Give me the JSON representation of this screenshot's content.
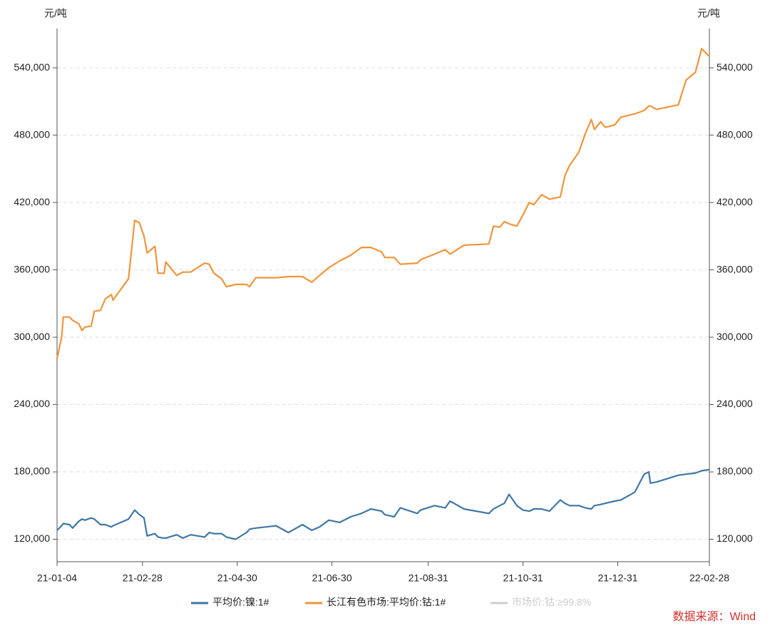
{
  "chart_data": {
    "type": "line",
    "y_label": "元/吨",
    "y2_label": "元/吨",
    "source": "数据来源：Wind",
    "x": [
      "21-01-04",
      "21-01-07",
      "21-01-08",
      "21-01-12",
      "21-01-14",
      "21-01-18",
      "21-01-20",
      "21-01-22",
      "21-01-26",
      "21-01-28",
      "21-02-01",
      "21-02-04",
      "21-02-08",
      "21-02-09",
      "21-02-19",
      "21-02-23",
      "21-02-26",
      "21-03-01",
      "21-03-03",
      "21-03-08",
      "21-03-10",
      "21-03-14",
      "21-03-15",
      "21-03-22",
      "21-03-26",
      "21-03-31",
      "21-04-09",
      "21-04-12",
      "21-04-15",
      "21-04-20",
      "21-04-23",
      "21-04-29",
      "21-05-06",
      "21-05-08",
      "21-05-12",
      "21-05-25",
      "21-06-02",
      "21-06-11",
      "21-06-17",
      "21-06-22",
      "21-06-28",
      "21-07-05",
      "21-07-12",
      "21-07-19",
      "21-07-25",
      "21-08-01",
      "21-08-03",
      "21-08-09",
      "21-08-13",
      "21-08-24",
      "21-08-26",
      "21-09-04",
      "21-09-11",
      "21-09-14",
      "21-09-23",
      "21-10-09",
      "21-10-12",
      "21-10-16",
      "21-10-19",
      "21-10-22",
      "21-10-27",
      "21-10-31",
      "21-11-04",
      "21-11-07",
      "21-11-12",
      "21-11-17",
      "21-11-24",
      "21-11-27",
      "21-11-30",
      "21-12-06",
      "21-12-10",
      "21-12-14",
      "21-12-16",
      "21-12-20",
      "21-12-23",
      "21-12-29",
      "22-01-02",
      "22-01-11",
      "22-01-17",
      "22-01-20",
      "22-01-21",
      "22-01-25",
      "22-02-08",
      "22-02-13",
      "22-02-19",
      "22-02-23",
      "22-02-28"
    ],
    "series": [
      {
        "name": "平均价:镍:1#",
        "color": "#3f77a6",
        "axis": "y",
        "values": [
          128000,
          132000,
          134000,
          133000,
          130000,
          136000,
          138000,
          137000,
          139000,
          138000,
          133000,
          133000,
          131000,
          132000,
          138000,
          146000,
          142000,
          139000,
          123000,
          125000,
          122000,
          121000,
          121000,
          124000,
          121000,
          124000,
          122000,
          126000,
          125000,
          125000,
          122000,
          120000,
          126000,
          129000,
          130000,
          132000,
          126000,
          133000,
          128000,
          131000,
          137000,
          135000,
          140000,
          143000,
          147000,
          145000,
          142000,
          140000,
          148000,
          143000,
          146000,
          150000,
          148000,
          154000,
          147000,
          143000,
          147000,
          150000,
          152000,
          160000,
          150000,
          146000,
          145000,
          147000,
          147000,
          145000,
          155000,
          152000,
          150000,
          150000,
          148000,
          147000,
          150000,
          151000,
          152000,
          154000,
          155000,
          162000,
          178000,
          180000,
          170000,
          171000,
          177000,
          178000,
          179000,
          181000,
          182000
        ]
      },
      {
        "name": "长江有色市场:平均价:钴:1#",
        "color": "#f0953b",
        "axis": "y2",
        "values": [
          281000,
          300000,
          318000,
          318000,
          315000,
          312000,
          306000,
          309000,
          310000,
          323000,
          324000,
          334000,
          338000,
          333000,
          352000,
          404000,
          402000,
          390000,
          375000,
          381000,
          357000,
          357000,
          367000,
          355000,
          358000,
          358000,
          366000,
          365000,
          357000,
          352000,
          345000,
          347000,
          347000,
          345000,
          353000,
          353000,
          354000,
          354000,
          349000,
          355000,
          362000,
          368000,
          373000,
          380000,
          380000,
          376000,
          371000,
          371000,
          365000,
          366000,
          369000,
          374000,
          378000,
          374000,
          382000,
          383000,
          399000,
          398000,
          403000,
          401000,
          399000,
          409000,
          420000,
          418000,
          427000,
          423000,
          425000,
          444000,
          453000,
          465000,
          481000,
          494000,
          485000,
          492000,
          487000,
          489000,
          496000,
          499000,
          502000,
          506000,
          506000,
          503000,
          507000,
          529000,
          536000,
          557000,
          550000
        ]
      },
      {
        "name": "市场价:钴:≥99.8%",
        "color": "#cccccc",
        "axis": "y",
        "hidden": true,
        "values": [
          null,
          null,
          null,
          null,
          null,
          null,
          null,
          null,
          null,
          null,
          null,
          null,
          null,
          null,
          null,
          null,
          null,
          null,
          null,
          null,
          null,
          null,
          null,
          null,
          null,
          null,
          null,
          null,
          null,
          null,
          null,
          null,
          null,
          null,
          null,
          null,
          null,
          null,
          null,
          null,
          null,
          null,
          null,
          null,
          null,
          null,
          null,
          null,
          null,
          null,
          null,
          null,
          null,
          null,
          null,
          null,
          null,
          null,
          null,
          null,
          null,
          null,
          null,
          null,
          null,
          null,
          null,
          null,
          null,
          null,
          null,
          null,
          null,
          null,
          null,
          null,
          null,
          null,
          null,
          null,
          null,
          null,
          null,
          null,
          null,
          null,
          null
        ]
      }
    ],
    "xlim": [
      "21-01-04",
      "22-02-28"
    ],
    "xticks": [
      "21-01-04",
      "21-02-28",
      "21-04-30",
      "21-06-30",
      "21-08-31",
      "21-10-31",
      "21-12-31",
      "22-02-28"
    ],
    "ylim": [
      100000,
      575000
    ],
    "yticks": [
      {
        "value": 120000,
        "label": "120,000"
      },
      {
        "value": 180000,
        "label": "180,000"
      },
      {
        "value": 240000,
        "label": "240,000"
      },
      {
        "value": 300000,
        "label": "300,000"
      },
      {
        "value": 360000,
        "label": "360,000"
      },
      {
        "value": 420000,
        "label": "420,000"
      },
      {
        "value": 480000,
        "label": "480,000"
      },
      {
        "value": 540000,
        "label": "540,000"
      }
    ],
    "y2lim": [
      100000,
      575000
    ],
    "y2ticks": [
      {
        "value": 120000,
        "label": "120,000"
      },
      {
        "value": 180000,
        "label": "180,000"
      },
      {
        "value": 240000,
        "label": "240,000"
      },
      {
        "value": 300000,
        "label": "300,000"
      },
      {
        "value": 360000,
        "label": "360,000"
      },
      {
        "value": 420000,
        "label": "420,000"
      },
      {
        "value": 480000,
        "label": "480,000"
      },
      {
        "value": 540000,
        "label": "540,000"
      }
    ],
    "grid": true
  }
}
